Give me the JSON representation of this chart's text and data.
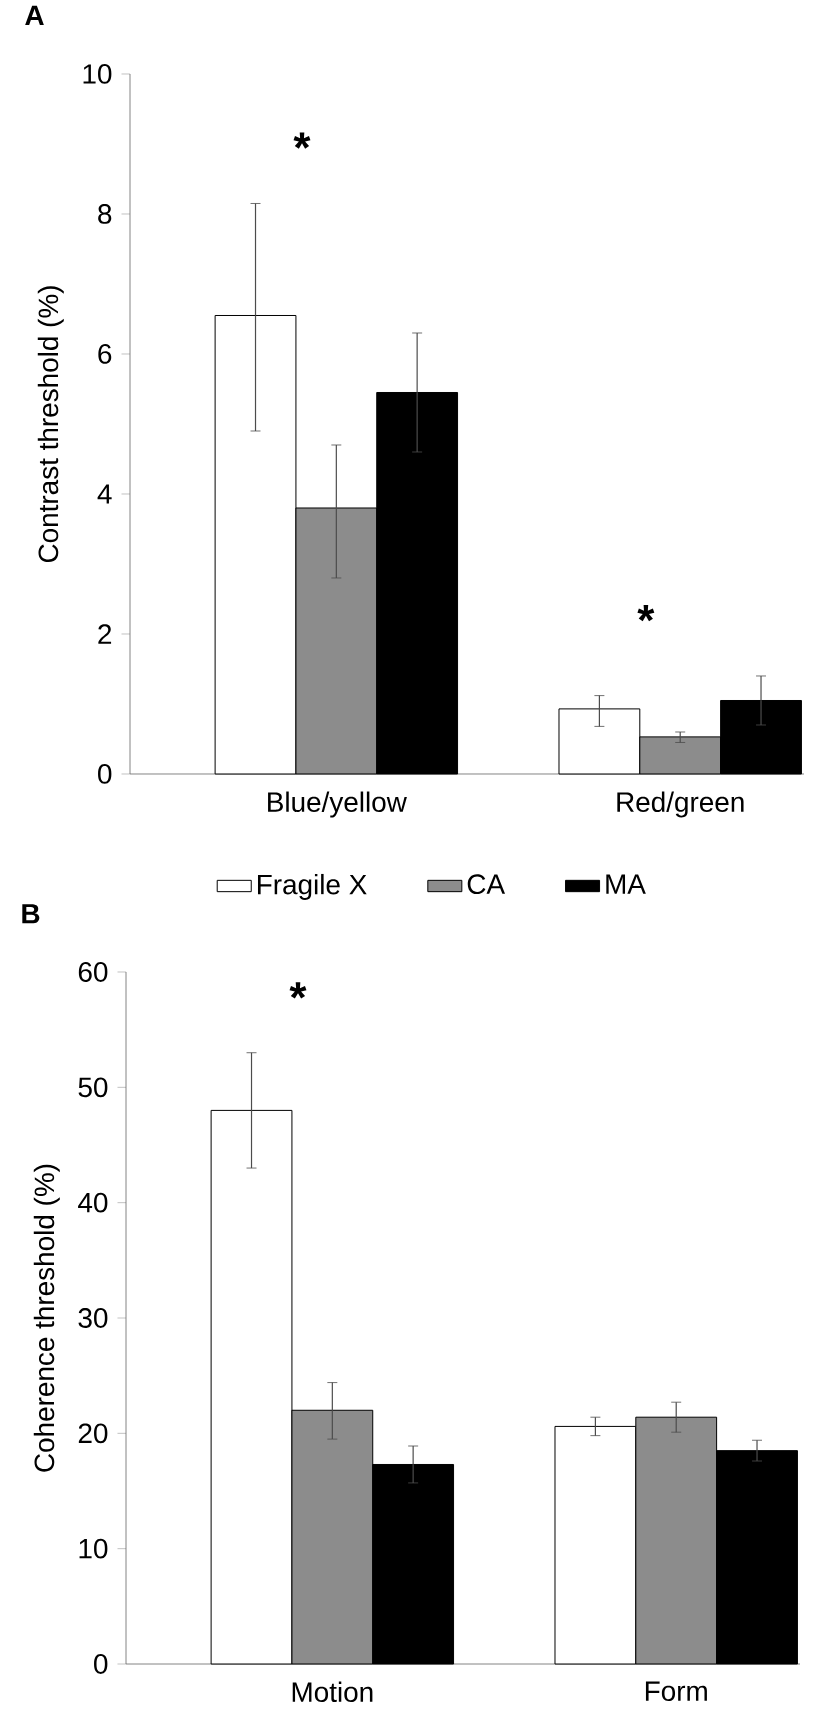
{
  "chart_data": [
    {
      "type": "bar",
      "title": "A",
      "ylabel": "Contrast threshold (%)",
      "categories": [
        "Blue/yellow",
        "Red/green"
      ],
      "ylim": [
        0,
        10
      ],
      "yticks": [
        0,
        2,
        4,
        6,
        8,
        10
      ],
      "legend": "bottom",
      "annotations": [
        "*",
        "*"
      ],
      "series": [
        {
          "name": "Fragile X",
          "color": "#ffffff",
          "values": [
            6.55,
            0.93
          ],
          "errors": [
            [
              4.9,
              8.15
            ],
            [
              0.68,
              1.12
            ]
          ]
        },
        {
          "name": "CA",
          "color": "#8c8c8c",
          "values": [
            3.8,
            0.53
          ],
          "errors": [
            [
              2.8,
              4.7
            ],
            [
              0.45,
              0.6
            ]
          ]
        },
        {
          "name": "MA",
          "color": "#000000",
          "values": [
            5.45,
            1.05
          ],
          "errors": [
            0.85,
            0.35
          ]
        }
      ]
    },
    {
      "type": "bar",
      "title": "B",
      "ylabel": "Coherence threshold (%)",
      "categories": [
        "Motion",
        "Form"
      ],
      "ylim": [
        0,
        60
      ],
      "yticks": [
        0,
        10,
        20,
        30,
        40,
        50,
        60
      ],
      "annotations": [
        "*"
      ],
      "series": [
        {
          "color": "#ffffff",
          "values": [
            48,
            20.6
          ],
          "errors": [
            [
              43,
              53
            ],
            [
              19.8,
              21.4
            ]
          ]
        },
        {
          "color": "#8c8c8c",
          "values": [
            22,
            21.4
          ],
          "errors": [
            [
              19.5,
              24.4
            ],
            1.3
          ]
        },
        {
          "color": "#000000",
          "values": [
            17.3,
            18.5
          ],
          "errors": [
            1.6,
            0.9
          ]
        }
      ]
    }
  ]
}
